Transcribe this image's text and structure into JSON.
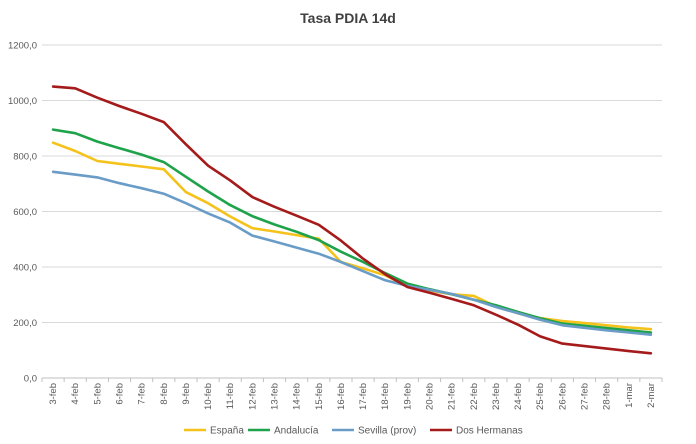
{
  "chart_data": {
    "type": "line",
    "title": "Tasa PDIA 14d",
    "xlabel": "",
    "ylabel": "",
    "ylim": [
      0,
      1200
    ],
    "y_ticks": [
      "0,0",
      "200,0",
      "400,0",
      "600,0",
      "800,0",
      "1000,0",
      "1200,0"
    ],
    "y_tick_values": [
      0,
      200,
      400,
      600,
      800,
      1000,
      1200
    ],
    "grid": true,
    "legend_position": "bottom",
    "categories": [
      "3-feb",
      "4-feb",
      "5-feb",
      "6-feb",
      "7-feb",
      "8-feb",
      "9-feb",
      "10-feb",
      "11-feb",
      "12-feb",
      "13-feb",
      "14-feb",
      "15-feb",
      "16-feb",
      "17-feb",
      "18-feb",
      "19-feb",
      "20-feb",
      "21-feb",
      "22-feb",
      "23-feb",
      "24-feb",
      "25-feb",
      "26-feb",
      "27-feb",
      "28-feb",
      "1-mar",
      "2-mar"
    ],
    "series": [
      {
        "name": "España",
        "color": "#F5C21B",
        "values": [
          848,
          818,
          782,
          772,
          762,
          752,
          670,
          630,
          582,
          540,
          528,
          515,
          502,
          418,
          395,
          370,
          330,
          315,
          302,
          296,
          258,
          233,
          216,
          205,
          198,
          190,
          182,
          176
        ]
      },
      {
        "name": "Andalucía",
        "color": "#1FA34A",
        "values": [
          895,
          882,
          852,
          828,
          805,
          778,
          725,
          672,
          623,
          583,
          553,
          527,
          497,
          455,
          418,
          378,
          340,
          320,
          302,
          282,
          262,
          238,
          215,
          196,
          188,
          180,
          172,
          164
        ]
      },
      {
        "name": "Sevilla (prov)",
        "color": "#6A9CC8",
        "values": [
          743,
          733,
          723,
          702,
          684,
          664,
          630,
          593,
          560,
          513,
          492,
          470,
          448,
          418,
          385,
          352,
          332,
          318,
          303,
          282,
          256,
          233,
          210,
          190,
          181,
          172,
          164,
          156
        ]
      },
      {
        "name": "Dos Hermanas",
        "color": "#A51A1A",
        "values": [
          1050,
          1044,
          1010,
          980,
          952,
          922,
          842,
          765,
          712,
          652,
          617,
          585,
          552,
          495,
          430,
          374,
          328,
          307,
          285,
          262,
          228,
          192,
          150,
          124,
          115,
          106,
          97,
          89
        ]
      }
    ]
  }
}
